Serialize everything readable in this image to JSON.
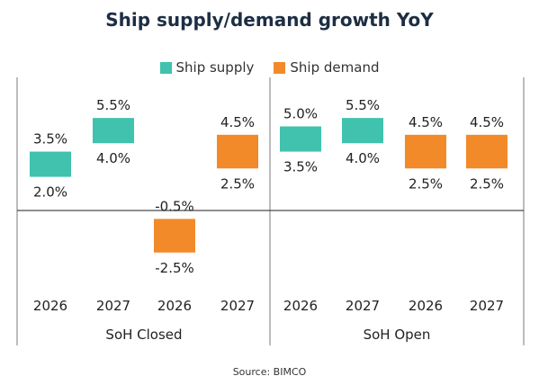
{
  "chart_data": {
    "type": "bar",
    "title": "Ship supply/demand  growth YoY",
    "legend": {
      "placement": "top-center",
      "entries": [
        {
          "name": "Ship supply",
          "color": "#40c2ae"
        },
        {
          "name": "Ship demand",
          "color": "#f28a2a"
        }
      ]
    },
    "groups": [
      "SoH Closed",
      "SoH Open"
    ],
    "ylim": [
      -3.5,
      7.5
    ],
    "grid": false,
    "bars": [
      {
        "group": "SoH Closed",
        "year": "2026",
        "series": "Ship supply",
        "low": 2.0,
        "high": 3.5,
        "low_label": "2.0%",
        "high_label": "3.5%"
      },
      {
        "group": "SoH Closed",
        "year": "2027",
        "series": "Ship supply",
        "low": 4.0,
        "high": 5.5,
        "low_label": "4.0%",
        "high_label": "5.5%"
      },
      {
        "group": "SoH Closed",
        "year": "2026",
        "series": "Ship demand",
        "low": -2.5,
        "high": -0.5,
        "low_label": "-2.5%",
        "high_label": "-0.5%"
      },
      {
        "group": "SoH Closed",
        "year": "2027",
        "series": "Ship demand",
        "low": 2.5,
        "high": 4.5,
        "low_label": "2.5%",
        "high_label": "4.5%"
      },
      {
        "group": "SoH Open",
        "year": "2026",
        "series": "Ship supply",
        "low": 3.5,
        "high": 5.0,
        "low_label": "3.5%",
        "high_label": "5.0%"
      },
      {
        "group": "SoH Open",
        "year": "2027",
        "series": "Ship supply",
        "low": 4.0,
        "high": 5.5,
        "low_label": "4.0%",
        "high_label": "5.5%"
      },
      {
        "group": "SoH Open",
        "year": "2026",
        "series": "Ship demand",
        "low": 2.5,
        "high": 4.5,
        "low_label": "2.5%",
        "high_label": "4.5%"
      },
      {
        "group": "SoH Open",
        "year": "2027",
        "series": "Ship demand",
        "low": 2.5,
        "high": 4.5,
        "low_label": "2.5%",
        "high_label": "4.5%"
      }
    ],
    "source": "Source: BIMCO"
  }
}
